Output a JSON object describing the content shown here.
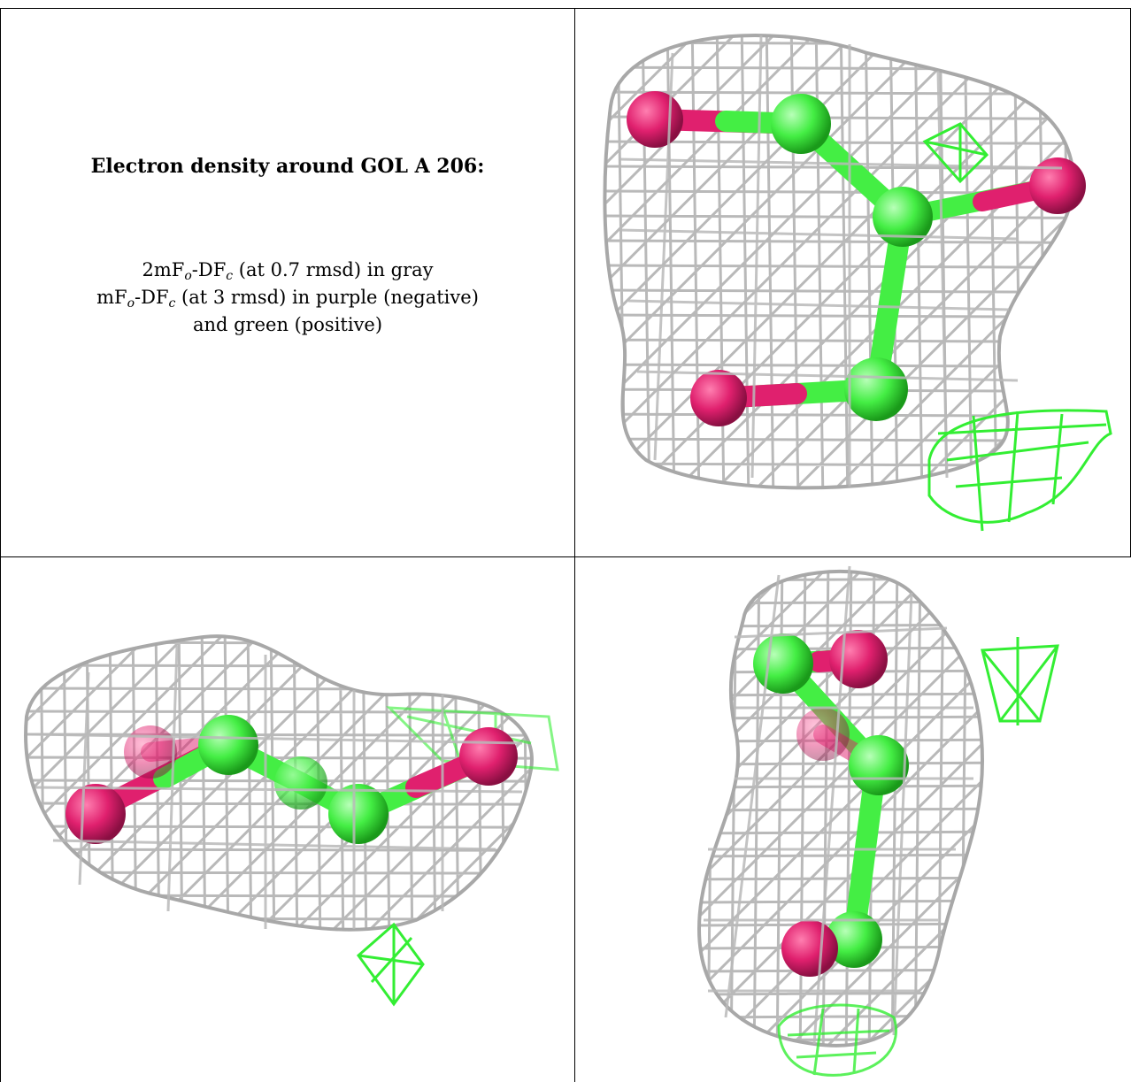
{
  "caption": {
    "title": "Electron density around GOL A 206:",
    "line1": {
      "a": "2mF",
      "a_sub": "o",
      "b": "-DF",
      "b_sub": "c",
      "rest": " (at 0.7 rmsd) in gray"
    },
    "line2": {
      "a": "mF",
      "a_sub": "o",
      "b": "-DF",
      "b_sub": "c",
      "rest": " (at 3 rmsd) in purple (negative)"
    },
    "line3": "and green (positive)"
  },
  "colors": {
    "mesh_gray": "#b9b9b9",
    "mesh_green": "#33ee33",
    "oxygen": "#e0206e",
    "carbon": "#44ee44"
  },
  "views": [
    {
      "name": "view-top-right"
    },
    {
      "name": "view-bottom-left"
    },
    {
      "name": "view-bottom-right"
    }
  ]
}
